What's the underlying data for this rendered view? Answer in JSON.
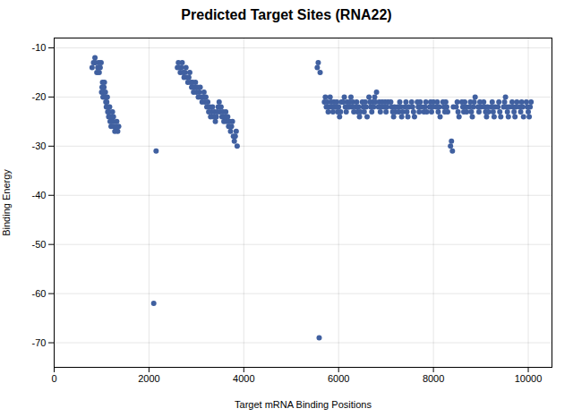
{
  "chart_data": {
    "type": "scatter",
    "title": "Predicted Target Sites (RNA22)",
    "xlabel": "Target mRNA Binding Positions",
    "ylabel": "Binding Energy",
    "color": "#4060a0",
    "xlim": [
      0,
      10500
    ],
    "ylim": [
      -75,
      -8
    ],
    "xticks": [
      0,
      2000,
      4000,
      6000,
      8000,
      10000
    ],
    "yticks": [
      -70,
      -60,
      -50,
      -40,
      -30,
      -20,
      -10
    ],
    "grid": true,
    "x": [
      800,
      830,
      860,
      870,
      900,
      920,
      940,
      950,
      970,
      990,
      1000,
      1010,
      1020,
      1030,
      1040,
      1050,
      1060,
      1070,
      1080,
      1090,
      1100,
      1110,
      1120,
      1130,
      1140,
      1150,
      1160,
      1170,
      1180,
      1190,
      1200,
      1210,
      1220,
      1230,
      1240,
      1250,
      1260,
      1280,
      1300,
      1320,
      1340,
      1360,
      2100,
      2150,
      2600,
      2620,
      2640,
      2660,
      2680,
      2700,
      2720,
      2740,
      2760,
      2780,
      2800,
      2820,
      2840,
      2860,
      2880,
      2900,
      2920,
      2940,
      2960,
      2980,
      3000,
      3020,
      3040,
      3060,
      3080,
      3100,
      3120,
      3140,
      3160,
      3180,
      3200,
      3220,
      3240,
      3260,
      3280,
      3300,
      3320,
      3340,
      3360,
      3380,
      3400,
      3420,
      3440,
      3460,
      3480,
      3500,
      3520,
      3540,
      3560,
      3580,
      3600,
      3620,
      3640,
      3660,
      3680,
      3700,
      3720,
      3740,
      3760,
      3780,
      3800,
      3820,
      3840,
      3860,
      5550,
      5570,
      5590,
      5610,
      5700,
      5720,
      5740,
      5760,
      5780,
      5800,
      5820,
      5840,
      5860,
      5880,
      5900,
      5920,
      5940,
      5960,
      5980,
      6000,
      6020,
      6040,
      6060,
      6100,
      6120,
      6140,
      6160,
      6180,
      6200,
      6220,
      6240,
      6260,
      6280,
      6300,
      6320,
      6360,
      6380,
      6400,
      6420,
      6440,
      6460,
      6500,
      6520,
      6540,
      6560,
      6580,
      6600,
      6640,
      6660,
      6680,
      6700,
      6720,
      6740,
      6760,
      6780,
      6800,
      6840,
      6860,
      6880,
      6900,
      6920,
      6960,
      6980,
      7000,
      7020,
      7040,
      7100,
      7120,
      7140,
      7160,
      7180,
      7200,
      7250,
      7270,
      7290,
      7310,
      7330,
      7350,
      7400,
      7420,
      7440,
      7460,
      7480,
      7540,
      7560,
      7580,
      7600,
      7660,
      7680,
      7700,
      7720,
      7740,
      7800,
      7820,
      7840,
      7860,
      7920,
      7940,
      7960,
      7980,
      8000,
      8060,
      8080,
      8100,
      8120,
      8140,
      8200,
      8220,
      8240,
      8260,
      8280,
      8300,
      8360,
      8380,
      8400,
      8420,
      8480,
      8500,
      8520,
      8540,
      8600,
      8620,
      8640,
      8660,
      8680,
      8700,
      8760,
      8780,
      8800,
      8820,
      8840,
      8860,
      8880,
      8940,
      8960,
      8980,
      9000,
      9060,
      9080,
      9100,
      9120,
      9140,
      9160,
      9220,
      9240,
      9260,
      9280,
      9300,
      9360,
      9380,
      9400,
      9420,
      9480,
      9500,
      9520,
      9540,
      9560,
      9580,
      9600,
      9660,
      9680,
      9700,
      9720,
      9740,
      9760,
      9820,
      9840,
      9860,
      9880,
      9900,
      9960,
      9980,
      10000,
      10020,
      10040,
      10060
    ],
    "values": [
      -14,
      -13,
      -12,
      -13,
      -15,
      -14,
      -13,
      -15,
      -14,
      -13,
      -19,
      -18,
      -17,
      -20,
      -19,
      -18,
      -17,
      -20,
      -19,
      -21,
      -22,
      -21,
      -20,
      -23,
      -22,
      -24,
      -23,
      -22,
      -25,
      -24,
      -26,
      -25,
      -24,
      -23,
      -25,
      -24,
      -26,
      -27,
      -26,
      -25,
      -27,
      -26,
      -62,
      -31,
      -14,
      -13,
      -14,
      -15,
      -14,
      -13,
      -15,
      -16,
      -15,
      -14,
      -16,
      -17,
      -16,
      -15,
      -17,
      -18,
      -17,
      -19,
      -18,
      -17,
      -19,
      -18,
      -20,
      -19,
      -18,
      -20,
      -21,
      -20,
      -19,
      -21,
      -20,
      -22,
      -21,
      -23,
      -22,
      -24,
      -23,
      -22,
      -24,
      -23,
      -25,
      -24,
      -23,
      -22,
      -21,
      -23,
      -22,
      -24,
      -23,
      -25,
      -24,
      -23,
      -25,
      -24,
      -26,
      -25,
      -27,
      -26,
      -25,
      -28,
      -29,
      -28,
      -27,
      -30,
      -14,
      -13,
      -69,
      -15,
      -21,
      -20,
      -22,
      -21,
      -23,
      -22,
      -20,
      -21,
      -22,
      -23,
      -21,
      -22,
      -22,
      -21,
      -23,
      -22,
      -24,
      -23,
      -21,
      -21,
      -20,
      -22,
      -23,
      -21,
      -22,
      -22,
      -21,
      -20,
      -22,
      -21,
      -23,
      -22,
      -21,
      -23,
      -22,
      -24,
      -23,
      -21,
      -22,
      -23,
      -21,
      -22,
      -24,
      -20,
      -21,
      -22,
      -23,
      -21,
      -22,
      -20,
      -21,
      -19,
      -22,
      -21,
      -23,
      -22,
      -21,
      -22,
      -21,
      -23,
      -22,
      -21,
      -21,
      -22,
      -23,
      -24,
      -22,
      -23,
      -22,
      -23,
      -21,
      -22,
      -24,
      -23,
      -22,
      -21,
      -23,
      -24,
      -22,
      -21,
      -22,
      -23,
      -24,
      -21,
      -22,
      -23,
      -21,
      -22,
      -23,
      -22,
      -21,
      -23,
      -22,
      -21,
      -23,
      -22,
      -21,
      -22,
      -21,
      -23,
      -22,
      -24,
      -21,
      -22,
      -23,
      -21,
      -22,
      -23,
      -30,
      -29,
      -31,
      -22,
      -22,
      -21,
      -23,
      -24,
      -21,
      -22,
      -23,
      -21,
      -22,
      -23,
      -22,
      -21,
      -23,
      -24,
      -22,
      -21,
      -20,
      -22,
      -23,
      -21,
      -22,
      -21,
      -22,
      -23,
      -24,
      -22,
      -23,
      -22,
      -21,
      -23,
      -24,
      -22,
      -22,
      -21,
      -23,
      -24,
      -22,
      -21,
      -20,
      -22,
      -23,
      -24,
      -22,
      -21,
      -22,
      -23,
      -24,
      -22,
      -21,
      -22,
      -23,
      -21,
      -22,
      -24,
      -21,
      -22,
      -23,
      -24,
      -22,
      -21
    ]
  }
}
